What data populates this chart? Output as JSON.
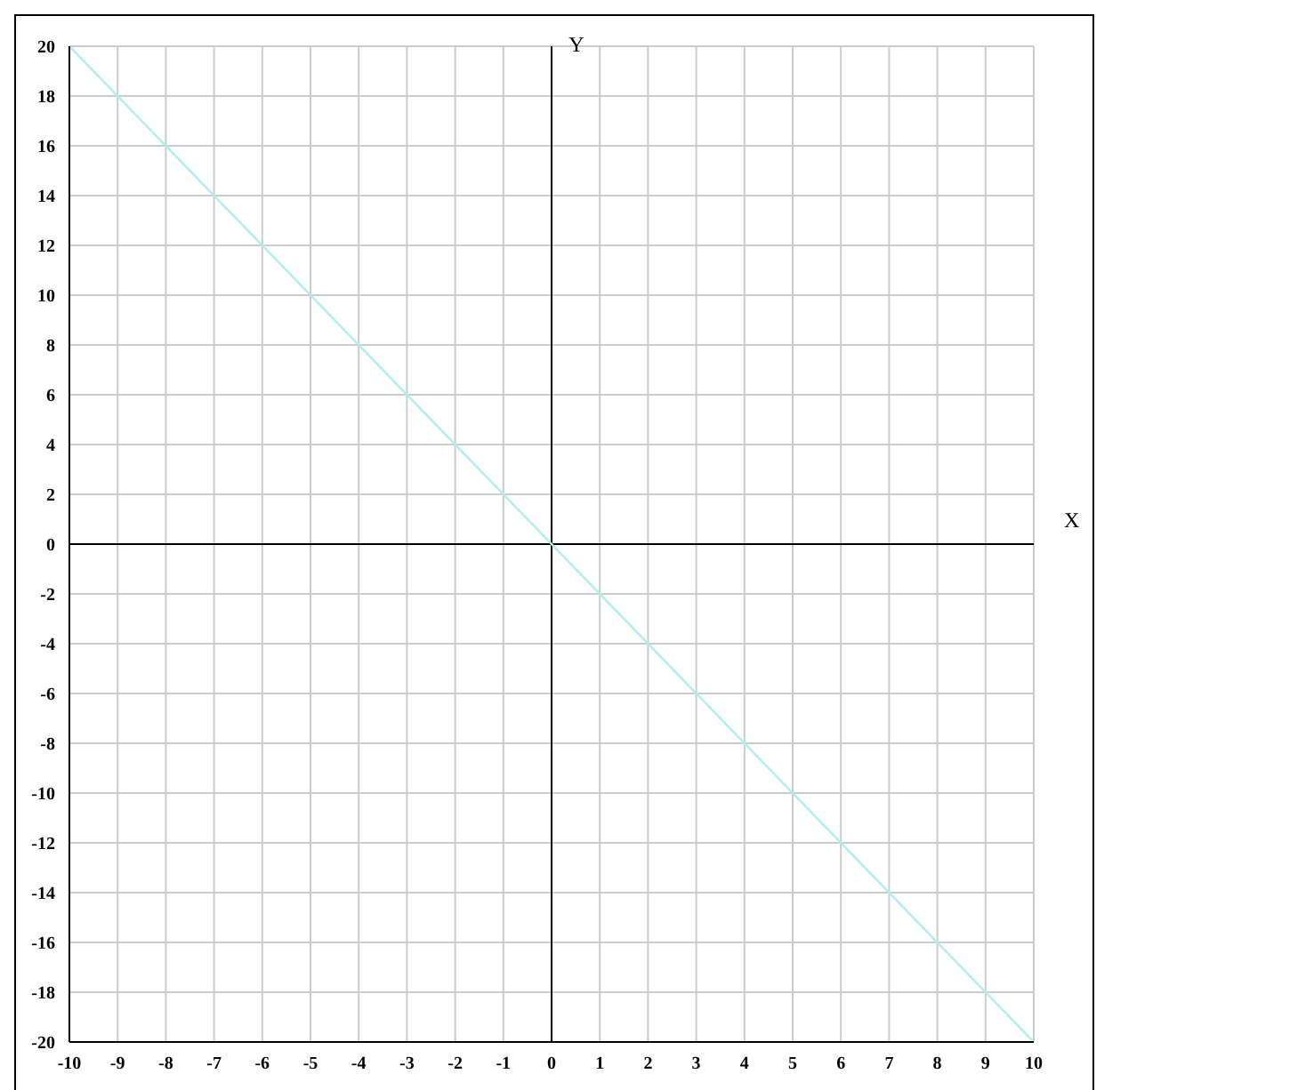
{
  "chart_data": {
    "type": "line",
    "xlabel": "X",
    "ylabel": "Y",
    "x": [
      -10,
      10
    ],
    "series": [
      {
        "color": "#aeeeee",
        "values": [
          20,
          -20
        ]
      }
    ],
    "xlim": [
      -10,
      10
    ],
    "xticks": [
      -10,
      -9,
      -8,
      -7,
      -6,
      -5,
      -4,
      -3,
      -2,
      -1,
      0,
      1,
      2,
      3,
      4,
      5,
      6,
      7,
      8,
      9,
      10
    ],
    "ylim": [
      -20,
      20
    ],
    "yticks": [
      -20,
      -18,
      -16,
      -14,
      -12,
      -10,
      -8,
      -6,
      -4,
      -2,
      0,
      2,
      4,
      6,
      8,
      10,
      12,
      14,
      16,
      18,
      20
    ],
    "grid": true,
    "marker": "none",
    "line_style": "solid"
  }
}
